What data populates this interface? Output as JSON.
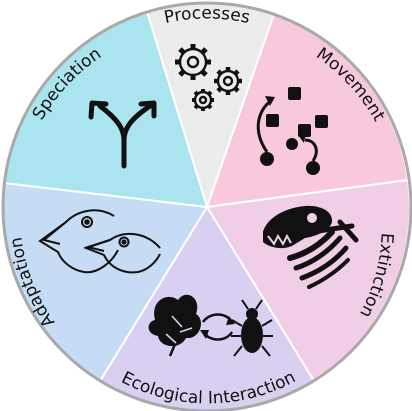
{
  "wheel": {
    "segments": [
      {
        "id": "processes",
        "label": "Processes",
        "color": "#ececec",
        "icon": "gears-icon"
      },
      {
        "id": "movement",
        "label": "Movement",
        "color": "#f8c9dc",
        "icon": "movement-arrows-icon"
      },
      {
        "id": "extinction",
        "label": "Extinction",
        "color": "#f0cfe6",
        "icon": "fossil-skull-icon"
      },
      {
        "id": "ecological",
        "label": "Ecological Interaction",
        "color": "#d9cff0",
        "icon": "leaf-beetle-icon"
      },
      {
        "id": "adaptation",
        "label": "Adaptation",
        "color": "#c6dcf4",
        "icon": "finch-heads-icon"
      },
      {
        "id": "speciation",
        "label": "Speciation",
        "color": "#a9e4ef",
        "icon": "fork-arrows-icon"
      }
    ],
    "outline_color": "#a9a9a9"
  }
}
